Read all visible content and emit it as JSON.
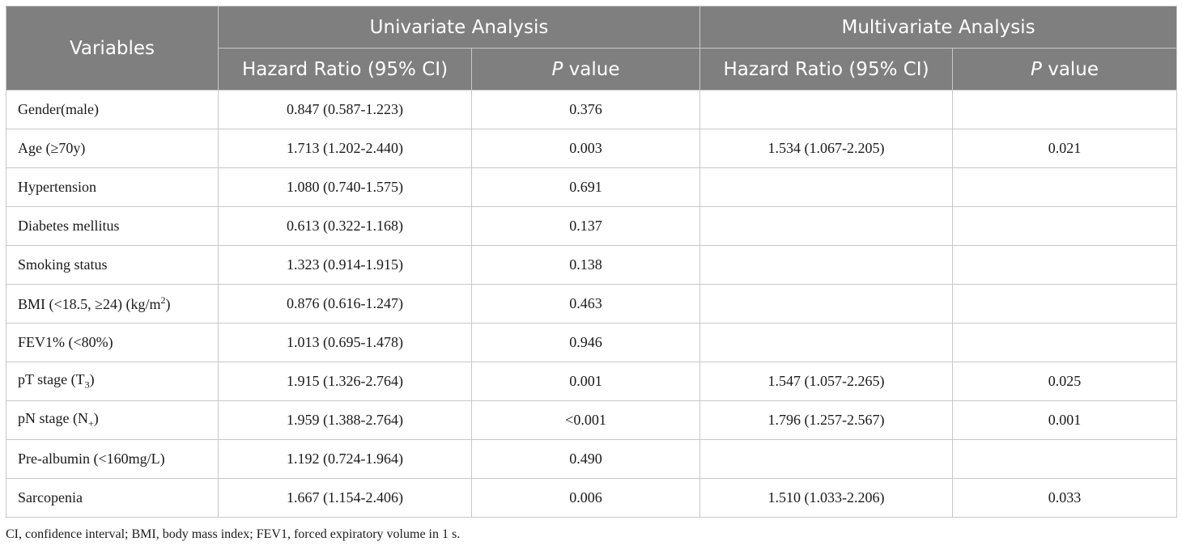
{
  "header": {
    "variables": "Variables",
    "univariate": "Univariate Analysis",
    "multivariate": "Multivariate Analysis",
    "hazard_ratio": "Hazard Ratio (95% CI)",
    "p_italic": "P",
    "p_rest": " value"
  },
  "rows": [
    {
      "var": "Gender(male)",
      "var_sup": "",
      "var_after": "",
      "uni_hr": "0.847 (0.587-1.223)",
      "uni_p": "0.376",
      "multi_hr": "",
      "multi_p": ""
    },
    {
      "var": "Age (≥70y)",
      "var_sup": "",
      "var_after": "",
      "uni_hr": "1.713 (1.202-2.440)",
      "uni_p": "0.003",
      "multi_hr": "1.534 (1.067-2.205)",
      "multi_p": "0.021"
    },
    {
      "var": "Hypertension",
      "var_sup": "",
      "var_after": "",
      "uni_hr": "1.080 (0.740-1.575)",
      "uni_p": "0.691",
      "multi_hr": "",
      "multi_p": ""
    },
    {
      "var": "Diabetes mellitus",
      "var_sup": "",
      "var_after": "",
      "uni_hr": "0.613 (0.322-1.168)",
      "uni_p": "0.137",
      "multi_hr": "",
      "multi_p": ""
    },
    {
      "var": "Smoking status",
      "var_sup": "",
      "var_after": "",
      "uni_hr": "1.323 (0.914-1.915)",
      "uni_p": "0.138",
      "multi_hr": "",
      "multi_p": ""
    },
    {
      "var": "BMI (<18.5, ≥24) (kg/m",
      "var_sup": "2",
      "var_after": ")",
      "uni_hr": "0.876 (0.616-1.247)",
      "uni_p": "0.463",
      "multi_hr": "",
      "multi_p": ""
    },
    {
      "var": "FEV1% (<80%)",
      "var_sup": "",
      "var_after": "",
      "uni_hr": "1.013 (0.695-1.478)",
      "uni_p": "0.946",
      "multi_hr": "",
      "multi_p": ""
    },
    {
      "var": "pT stage (T",
      "var_sub": "3",
      "var_after": ")",
      "uni_hr": "1.915 (1.326-2.764)",
      "uni_p": "0.001",
      "multi_hr": "1.547 (1.057-2.265)",
      "multi_p": "0.025"
    },
    {
      "var": "pN stage (N",
      "var_sub": "+",
      "var_after": ")",
      "uni_hr": "1.959 (1.388-2.764)",
      "uni_p": "<0.001",
      "multi_hr": "1.796 (1.257-2.567)",
      "multi_p": "0.001"
    },
    {
      "var": "Pre-albumin (<160mg/L)",
      "var_sup": "",
      "var_after": "",
      "uni_hr": "1.192 (0.724-1.964)",
      "uni_p": "0.490",
      "multi_hr": "",
      "multi_p": ""
    },
    {
      "var": "Sarcopenia",
      "var_sup": "",
      "var_after": "",
      "uni_hr": "1.667 (1.154-2.406)",
      "uni_p": "0.006",
      "multi_hr": "1.510 (1.033-2.206)",
      "multi_p": "0.033"
    }
  ],
  "footnote": "CI, confidence interval; BMI, body mass index; FEV1, forced expiratory volume in 1 s.",
  "colors": {
    "header_bg": "#7f7f7f",
    "header_text": "#ffffff",
    "grid": "#c8c8c8"
  }
}
